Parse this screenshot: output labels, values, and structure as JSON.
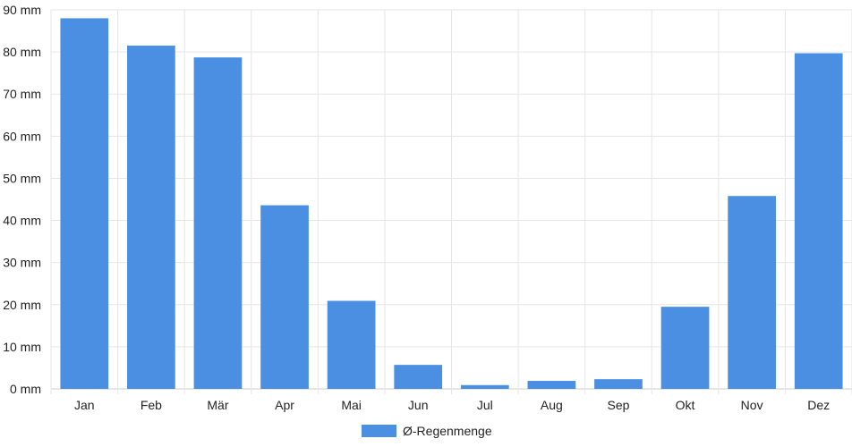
{
  "chart_data": {
    "type": "bar",
    "categories": [
      "Jan",
      "Feb",
      "Mär",
      "Apr",
      "Mai",
      "Jun",
      "Jul",
      "Aug",
      "Sep",
      "Okt",
      "Nov",
      "Dez"
    ],
    "series": [
      {
        "name": "Ø-Regenmenge",
        "values": [
          88,
          81.5,
          78.7,
          43.6,
          20.9,
          5.7,
          0.9,
          1.9,
          2.3,
          19.5,
          45.8,
          79.7
        ],
        "color": "#4a8fe2"
      }
    ],
    "y_unit": "mm",
    "ylim": [
      0,
      90
    ],
    "y_ticks": [
      0,
      10,
      20,
      30,
      40,
      50,
      60,
      70,
      80,
      90
    ],
    "y_tick_labels": [
      "0 mm",
      "10 mm",
      "20 mm",
      "30 mm",
      "40 mm",
      "50 mm",
      "60 mm",
      "70 mm",
      "80 mm",
      "90 mm"
    ],
    "grid": true,
    "legend_position": "bottom",
    "title": "",
    "xlabel": "",
    "ylabel": ""
  }
}
